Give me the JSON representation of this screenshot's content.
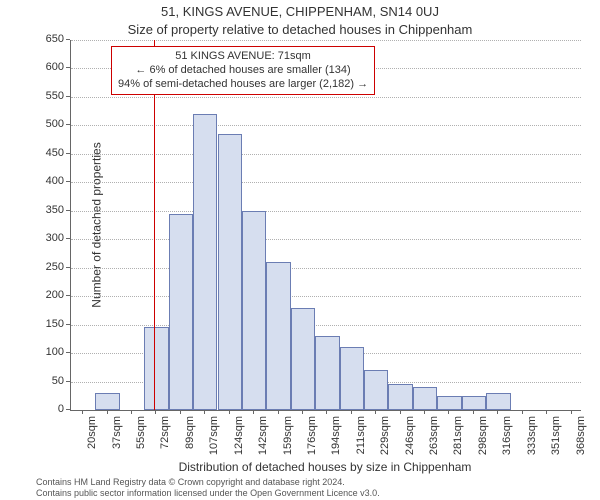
{
  "supertitle": "51, KINGS AVENUE, CHIPPENHAM, SN14 0UJ",
  "title": "Size of property relative to detached houses in Chippenham",
  "chart": {
    "type": "histogram",
    "background_color": "#ffffff",
    "bar_fill": "#d6deef",
    "bar_border": "#6b7db3",
    "grid_color": "#b0b0b0",
    "axis_color": "#666666",
    "ylabel": "Number of detached properties",
    "xlabel": "Distribution of detached houses by size in Chippenham",
    "ylim": [
      0,
      650
    ],
    "yticks": [
      0,
      50,
      100,
      150,
      200,
      250,
      300,
      350,
      400,
      450,
      500,
      550,
      600,
      650
    ],
    "ytick_fontsize": 11,
    "x_range": [
      11.25,
      376.75
    ],
    "x_bin_width": 17.5,
    "xtick_labels": [
      "20sqm",
      "37sqm",
      "55sqm",
      "72sqm",
      "89sqm",
      "107sqm",
      "124sqm",
      "142sqm",
      "159sqm",
      "176sqm",
      "194sqm",
      "211sqm",
      "229sqm",
      "246sqm",
      "263sqm",
      "281sqm",
      "298sqm",
      "316sqm",
      "333sqm",
      "351sqm",
      "368sqm"
    ],
    "xtick_fontsize": 11,
    "values": [
      0,
      30,
      0,
      145,
      345,
      520,
      485,
      350,
      260,
      180,
      130,
      110,
      70,
      45,
      40,
      25,
      25,
      30,
      0,
      0,
      0
    ],
    "marker_line": {
      "x": 71,
      "color": "#cc0000",
      "width": 1
    },
    "annotation": {
      "lines": [
        "51 KINGS AVENUE: 71sqm",
        "← 6% of detached houses are smaller (134)",
        "94% of semi-detached houses are larger (2,182) →"
      ],
      "border_color": "#cc0000",
      "bg_color": "#ffffff",
      "fontsize": 11
    }
  },
  "footer": {
    "line1": "Contains HM Land Registry data © Crown copyright and database right 2024.",
    "line2": "Contains public sector information licensed under the Open Government Licence v3.0.",
    "fontsize": 9,
    "color": "#555555"
  }
}
